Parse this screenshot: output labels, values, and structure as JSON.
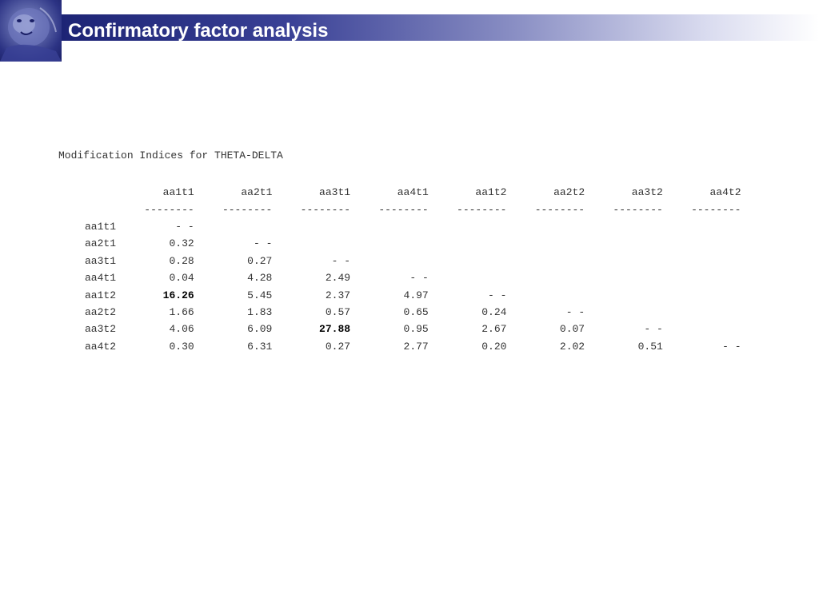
{
  "title": "Confirmatory factor analysis",
  "heading": "Modification Indices for THETA-DELTA",
  "columns": [
    "aa1t1",
    "aa2t1",
    "aa3t1",
    "aa4t1",
    "aa1t2",
    "aa2t2",
    "aa3t2",
    "aa4t2"
  ],
  "separator": "--------",
  "rows": [
    {
      "label": "aa1t1",
      "values": [
        "- -"
      ]
    },
    {
      "label": "aa2t1",
      "values": [
        "0.32",
        "- -"
      ]
    },
    {
      "label": "aa3t1",
      "values": [
        "0.28",
        "0.27",
        "- -"
      ]
    },
    {
      "label": "aa4t1",
      "values": [
        "0.04",
        "4.28",
        "2.49",
        "- -"
      ]
    },
    {
      "label": "aa1t2",
      "values": [
        "16.26",
        "5.45",
        "2.37",
        "4.97",
        "- -"
      ]
    },
    {
      "label": "aa2t2",
      "values": [
        "1.66",
        "1.83",
        "0.57",
        "0.65",
        "0.24",
        "- -"
      ]
    },
    {
      "label": "aa3t2",
      "values": [
        "4.06",
        "6.09",
        "27.88",
        "0.95",
        "2.67",
        "0.07",
        "- -"
      ]
    },
    {
      "label": "aa4t2",
      "values": [
        "0.30",
        "6.31",
        "0.27",
        "2.77",
        "0.20",
        "2.02",
        "0.51",
        "- -"
      ]
    }
  ],
  "highlighted": [
    "16.26",
    "27.88"
  ],
  "colors": {
    "title_bar_dark": "#1d2475",
    "title_text": "#ffffff",
    "body_text": "#333333"
  }
}
